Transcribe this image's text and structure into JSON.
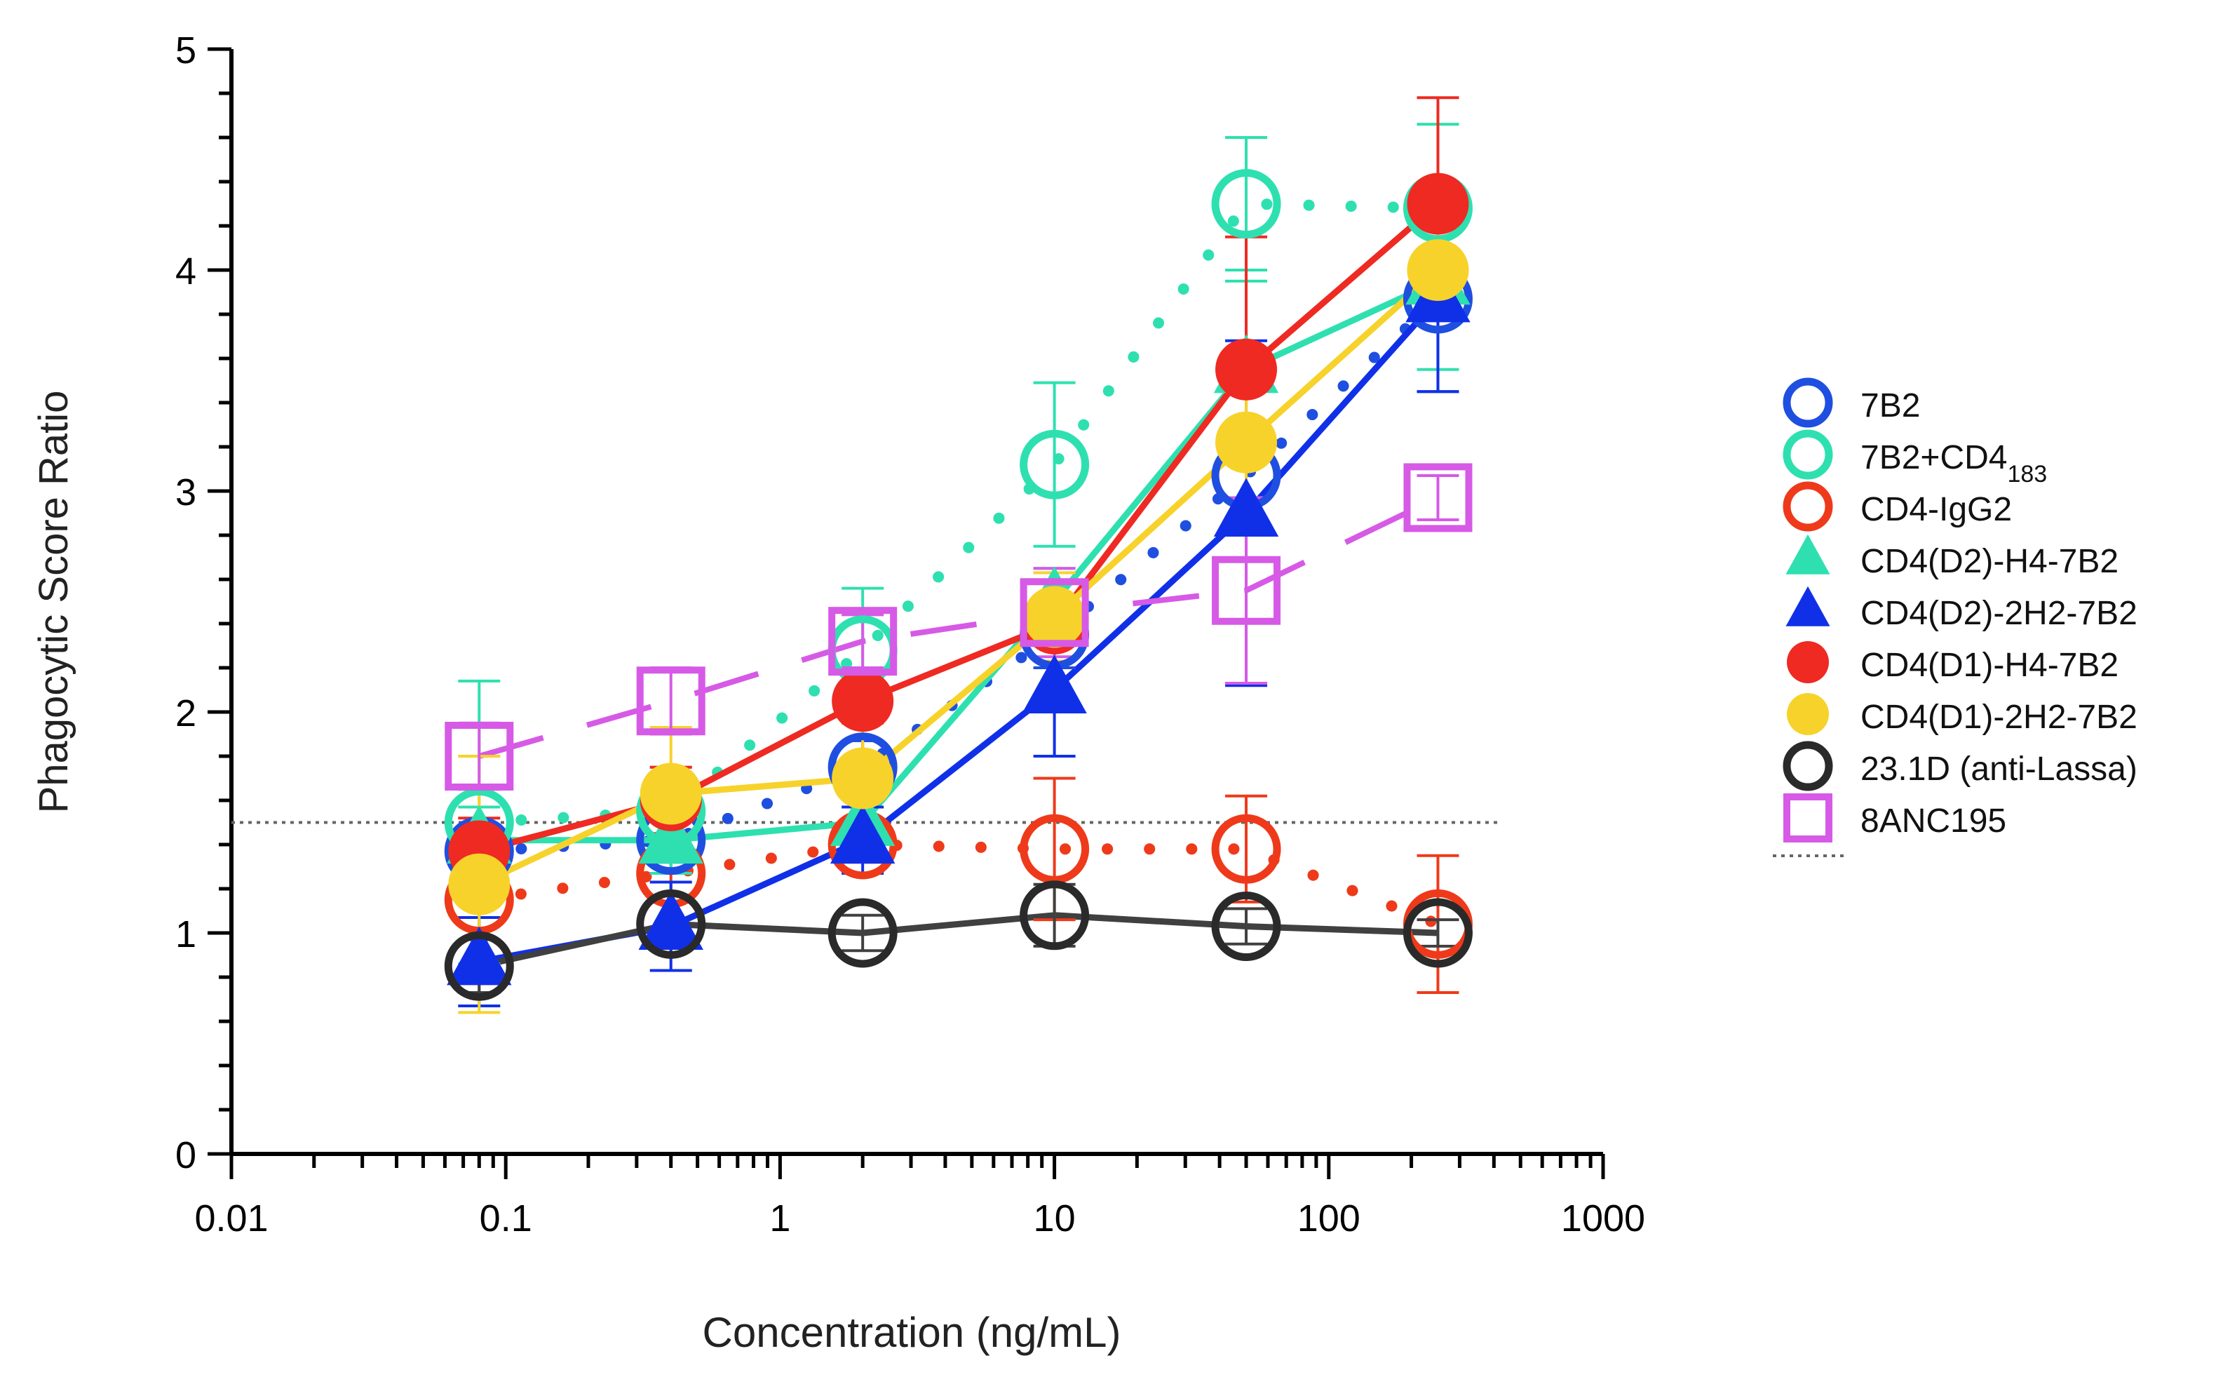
{
  "chart_data": {
    "type": "scatter",
    "title": "",
    "xlabel": "Concentration (ng/mL)",
    "ylabel": "Phagocytic Score Ratio",
    "xscale": "log",
    "xlim": [
      0.01,
      1000
    ],
    "ylim": [
      0,
      5
    ],
    "x_ticks": [
      "0.01",
      "0.1",
      "1",
      "10",
      "100",
      "1000"
    ],
    "y_ticks": [
      "0",
      "1",
      "2",
      "3",
      "4",
      "5"
    ],
    "x": [
      0.08,
      0.4,
      2,
      10,
      50,
      250
    ],
    "threshold": 1.5,
    "grid": false,
    "legend_position": "right",
    "series": [
      {
        "name": "7B2",
        "line": "dotted",
        "marker": "circle-open",
        "color": "#1f4fe0",
        "values": [
          1.37,
          1.42,
          1.75,
          2.35,
          3.07,
          3.87
        ],
        "errors": [
          0.1,
          0.1,
          0.12,
          0.15,
          0.2,
          0.42
        ]
      },
      {
        "name": "7B2+CD4",
        "name_sub": "183",
        "line": "dotted",
        "marker": "circle-open",
        "color": "#2ee0b0",
        "values": [
          1.5,
          1.55,
          2.28,
          3.12,
          4.3,
          4.28
        ],
        "errors": [
          0.64,
          0.2,
          0.28,
          0.37,
          0.3,
          0.38
        ]
      },
      {
        "name": "CD4-IgG2",
        "line": "dotted",
        "marker": "circle-open",
        "color": "#ee3a1a",
        "values": [
          1.15,
          1.27,
          1.4,
          1.38,
          1.38,
          1.04
        ],
        "errors": [
          0.08,
          0.1,
          0.08,
          0.32,
          0.24,
          0.31
        ]
      },
      {
        "name": "CD4(D2)-H4-7B2",
        "line": "solid",
        "marker": "triangle-filled",
        "color": "#2ee0b0",
        "values": [
          1.42,
          1.42,
          1.5,
          2.5,
          3.55,
          3.95
        ],
        "errors": [
          0.15,
          0.15,
          0.15,
          0.15,
          0.4,
          0.4
        ]
      },
      {
        "name": "CD4(D2)-2H2-7B2",
        "line": "solid",
        "marker": "triangle-filled",
        "color": "#1030e8",
        "values": [
          0.87,
          1.03,
          1.42,
          2.1,
          2.9,
          3.87
        ],
        "errors": [
          0.2,
          0.2,
          0.15,
          0.3,
          0.78,
          0.42
        ]
      },
      {
        "name": "CD4(D1)-H4-7B2",
        "line": "solid",
        "marker": "circle-filled",
        "color": "#ee2a22",
        "values": [
          1.37,
          1.6,
          2.05,
          2.4,
          3.55,
          4.3
        ],
        "errors": [
          0.15,
          0.15,
          0.1,
          0.1,
          0.6,
          0.48
        ]
      },
      {
        "name": "CD4(D1)-2H2-7B2",
        "line": "solid",
        "marker": "circle-filled",
        "color": "#f7d22a",
        "values": [
          1.22,
          1.63,
          1.7,
          2.43,
          3.22,
          4.0
        ],
        "errors": [
          0.58,
          0.3,
          0.3,
          0.2,
          0.4,
          0.2
        ]
      },
      {
        "name": "23.1D (anti-Lassa)",
        "line": "solid",
        "marker": "circle-open",
        "color": "#2a2a2a",
        "line_color": "#404040",
        "values": [
          0.85,
          1.04,
          1.0,
          1.08,
          1.03,
          1.0
        ],
        "errors": [
          0.12,
          0.1,
          0.08,
          0.14,
          0.08,
          0.06
        ]
      },
      {
        "name": "8ANC195",
        "line": "dashed",
        "marker": "square-open",
        "color": "#d65ae6",
        "values": [
          1.8,
          2.05,
          2.32,
          2.45,
          2.55,
          2.97
        ],
        "errors": [
          0.15,
          0.15,
          0.12,
          0.2,
          0.42,
          0.1
        ]
      }
    ]
  }
}
